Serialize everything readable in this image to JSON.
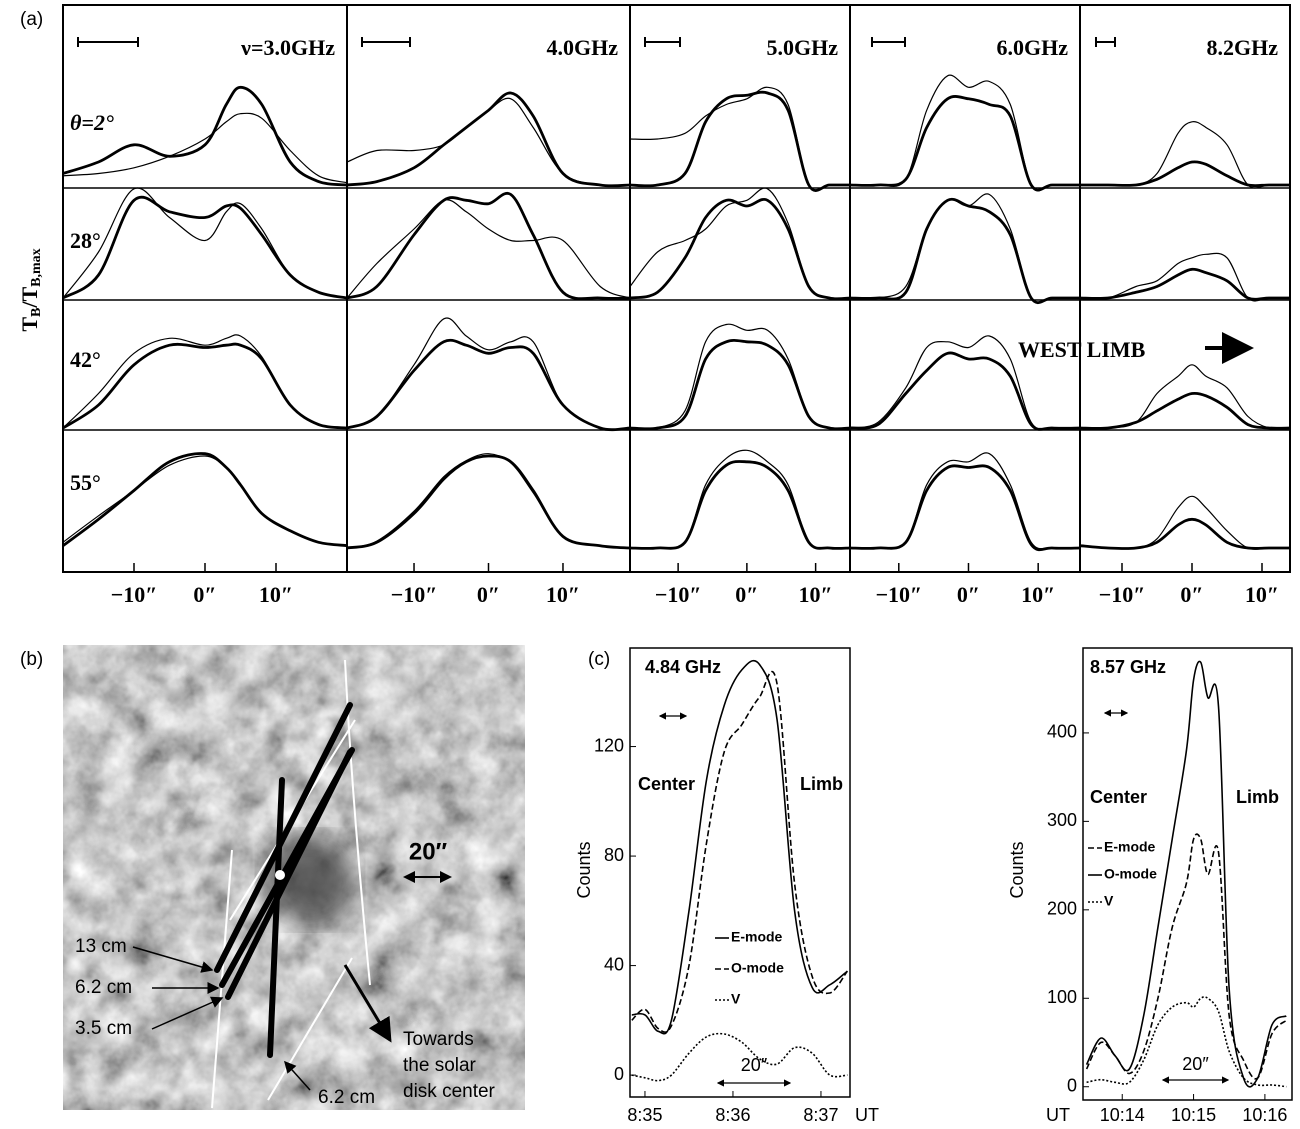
{
  "chart_data": [
    {
      "type": "profile-grid",
      "panel_label": "(a)",
      "y_label": [
        "T",
        "B",
        "/T",
        "B,max"
      ],
      "annotation": "WEST LIMB",
      "rows": [
        "θ=2°",
        "28°",
        "42°",
        "55°"
      ],
      "ylim": [
        0,
        1
      ],
      "xticks": [
        {
          "value": -10,
          "label": "−10″"
        },
        {
          "value": 0,
          "label": "0″"
        },
        {
          "value": 10,
          "label": "10″"
        }
      ],
      "columns": [
        {
          "label": "ν=3.0GHz",
          "xlim": [
            -20,
            20
          ],
          "x": [
            -20,
            -15,
            -10,
            -5,
            0,
            3,
            5,
            8,
            12,
            16,
            20
          ],
          "profiles": [
            {
              "heavy": [
                0.1,
                0.2,
                0.35,
                0.25,
                0.35,
                0.7,
                0.85,
                0.7,
                0.2,
                0.03,
                0
              ],
              "light": [
                0.08,
                0.1,
                0.15,
                0.25,
                0.4,
                0.55,
                0.62,
                0.58,
                0.3,
                0.08,
                0.02
              ]
            },
            {
              "heavy": [
                0,
                0.2,
                0.85,
                0.75,
                0.7,
                0.8,
                0.78,
                0.55,
                0.2,
                0.05,
                0
              ],
              "light": [
                0,
                0.4,
                0.95,
                0.7,
                0.5,
                0.75,
                0.82,
                0.6,
                0.2,
                0.05,
                0
              ]
            },
            {
              "heavy": [
                0,
                0.2,
                0.55,
                0.72,
                0.7,
                0.72,
                0.72,
                0.6,
                0.2,
                0.03,
                0
              ],
              "light": [
                0,
                0.3,
                0.65,
                0.78,
                0.72,
                0.78,
                0.8,
                0.62,
                0.2,
                0.03,
                0
              ]
            },
            {
              "heavy": [
                0.02,
                0.25,
                0.5,
                0.75,
                0.82,
                0.7,
                0.55,
                0.3,
                0.15,
                0.05,
                0.02
              ],
              "light": [
                0.05,
                0.28,
                0.5,
                0.72,
                0.8,
                0.7,
                0.55,
                0.3,
                0.15,
                0.05,
                0.02
              ]
            }
          ]
        },
        {
          "label": "4.0GHz",
          "xlim": [
            -19,
            19
          ],
          "x": [
            -19,
            -15,
            -10,
            -6,
            -3,
            0,
            3,
            6,
            10,
            15,
            19
          ],
          "profiles": [
            {
              "heavy": [
                0,
                0.03,
                0.15,
                0.35,
                0.5,
                0.65,
                0.8,
                0.6,
                0.1,
                0,
                0
              ],
              "light": [
                0.2,
                0.3,
                0.3,
                0.35,
                0.5,
                0.65,
                0.75,
                0.5,
                0.1,
                0,
                0
              ]
            },
            {
              "heavy": [
                0,
                0.1,
                0.55,
                0.85,
                0.85,
                0.82,
                0.9,
                0.55,
                0.05,
                0,
                0
              ],
              "light": [
                0,
                0.3,
                0.6,
                0.85,
                0.75,
                0.6,
                0.5,
                0.5,
                0.5,
                0.1,
                0
              ]
            },
            {
              "heavy": [
                0,
                0.1,
                0.5,
                0.75,
                0.72,
                0.65,
                0.7,
                0.65,
                0.2,
                0,
                0
              ],
              "light": [
                0,
                0.1,
                0.55,
                0.95,
                0.8,
                0.68,
                0.75,
                0.75,
                0.2,
                0,
                0
              ]
            },
            {
              "heavy": [
                0,
                0.05,
                0.3,
                0.6,
                0.75,
                0.8,
                0.75,
                0.5,
                0.1,
                0.02,
                0
              ],
              "light": [
                0,
                0.06,
                0.32,
                0.62,
                0.76,
                0.82,
                0.74,
                0.48,
                0.1,
                0.02,
                0
              ]
            }
          ]
        },
        {
          "label": "5.0GHz",
          "xlim": [
            -17,
            15
          ],
          "x": [
            -17,
            -13,
            -9,
            -6,
            -3,
            0,
            3,
            6,
            9,
            12,
            15
          ],
          "profiles": [
            {
              "heavy": [
                0,
                0,
                0.1,
                0.55,
                0.75,
                0.78,
                0.8,
                0.65,
                0,
                0,
                0
              ],
              "light": [
                0.4,
                0.4,
                0.45,
                0.6,
                0.7,
                0.75,
                0.85,
                0.7,
                0,
                0,
                0
              ]
            },
            {
              "heavy": [
                0,
                0.05,
                0.35,
                0.7,
                0.85,
                0.8,
                0.85,
                0.6,
                0.1,
                0,
                0
              ],
              "light": [
                0.1,
                0.4,
                0.5,
                0.6,
                0.8,
                0.85,
                0.95,
                0.65,
                0.1,
                0,
                0
              ]
            },
            {
              "heavy": [
                0,
                0,
                0.1,
                0.6,
                0.75,
                0.75,
                0.72,
                0.55,
                0.1,
                0,
                0
              ],
              "light": [
                0,
                0,
                0.15,
                0.75,
                0.9,
                0.85,
                0.85,
                0.6,
                0.1,
                0,
                0
              ]
            },
            {
              "heavy": [
                0,
                0,
                0.05,
                0.5,
                0.72,
                0.75,
                0.7,
                0.5,
                0.05,
                0,
                0
              ],
              "light": [
                0,
                0,
                0.05,
                0.55,
                0.78,
                0.85,
                0.75,
                0.55,
                0.05,
                0,
                0
              ]
            }
          ]
        },
        {
          "label": "6.0GHz",
          "xlim": [
            -17,
            16
          ],
          "x": [
            -17,
            -13,
            -9,
            -6,
            -3,
            0,
            3,
            6,
            9,
            12,
            16
          ],
          "profiles": [
            {
              "heavy": [
                0,
                0,
                0.05,
                0.5,
                0.75,
                0.75,
                0.7,
                0.6,
                0,
                0,
                0
              ],
              "light": [
                0,
                0,
                0.05,
                0.65,
                0.95,
                0.85,
                0.9,
                0.7,
                0,
                0,
                0
              ]
            },
            {
              "heavy": [
                0,
                0,
                0.05,
                0.6,
                0.85,
                0.8,
                0.75,
                0.55,
                0,
                0,
                0
              ],
              "light": [
                0,
                0,
                0.1,
                0.6,
                0.85,
                0.8,
                0.9,
                0.6,
                0,
                0,
                0
              ]
            },
            {
              "heavy": [
                0,
                0.03,
                0.3,
                0.5,
                0.65,
                0.6,
                0.6,
                0.45,
                0.03,
                0,
                0
              ],
              "light": [
                0,
                0.05,
                0.35,
                0.7,
                0.75,
                0.7,
                0.8,
                0.6,
                0.05,
                0,
                0
              ]
            },
            {
              "heavy": [
                0,
                0,
                0.05,
                0.5,
                0.7,
                0.7,
                0.7,
                0.5,
                0.03,
                0,
                0
              ],
              "light": [
                0,
                0,
                0.05,
                0.55,
                0.75,
                0.75,
                0.82,
                0.55,
                0.05,
                0,
                0
              ]
            }
          ]
        },
        {
          "label": "8.2GHz",
          "xlim": [
            -16,
            14
          ],
          "x": [
            -16,
            -12,
            -8,
            -5,
            -2,
            0,
            2,
            5,
            8,
            11,
            14
          ],
          "profiles": [
            {
              "heavy": [
                0,
                0,
                0,
                0.05,
                0.15,
                0.2,
                0.18,
                0.08,
                0,
                0,
                0
              ],
              "light": [
                0,
                0,
                0,
                0.1,
                0.45,
                0.55,
                0.5,
                0.35,
                0,
                0,
                0
              ]
            },
            {
              "heavy": [
                0,
                0,
                0.05,
                0.1,
                0.2,
                0.25,
                0.22,
                0.15,
                0,
                0,
                0
              ],
              "light": [
                0,
                0,
                0.1,
                0.15,
                0.3,
                0.35,
                0.38,
                0.35,
                0,
                0,
                0
              ]
            },
            {
              "heavy": [
                0,
                0,
                0.05,
                0.15,
                0.25,
                0.3,
                0.28,
                0.18,
                0.03,
                0,
                0
              ],
              "light": [
                0,
                0,
                0.05,
                0.3,
                0.45,
                0.55,
                0.45,
                0.35,
                0.1,
                0,
                0
              ]
            },
            {
              "heavy": [
                0.02,
                0,
                0,
                0.05,
                0.2,
                0.25,
                0.2,
                0.05,
                0,
                0,
                0
              ],
              "light": [
                0.02,
                0,
                0,
                0.08,
                0.35,
                0.45,
                0.35,
                0.15,
                0,
                0,
                0
              ]
            }
          ]
        }
      ]
    },
    {
      "type": "line",
      "panel_label": "(c)",
      "title": "4.84 GHz",
      "y_label": "Counts",
      "x_label": "UT",
      "annotations": [
        "Center",
        "Limb"
      ],
      "scale_label": "20″",
      "xlim": [
        514.83,
        517.33
      ],
      "ylim": [
        -8,
        156
      ],
      "xticks": [
        {
          "value": 515,
          "label": "8:35"
        },
        {
          "value": 516,
          "label": "8:36"
        },
        {
          "value": 517,
          "label": "8:37"
        }
      ],
      "yticks": [
        0,
        40,
        80,
        120
      ],
      "x": [
        514.85,
        515.0,
        515.15,
        515.3,
        515.5,
        515.7,
        515.9,
        516.1,
        516.3,
        516.5,
        516.7,
        516.9,
        517.1,
        517.3
      ],
      "series": [
        {
          "name": "E-mode",
          "color": "#000000",
          "dash": "solid",
          "values": [
            22,
            22,
            16,
            20,
            60,
            108,
            135,
            148,
            150,
            130,
            60,
            32,
            33,
            38
          ]
        },
        {
          "name": "O-mode",
          "color": "#000000",
          "dash": "dashed",
          "values": [
            20,
            24,
            17,
            18,
            40,
            85,
            118,
            128,
            138,
            143,
            70,
            36,
            30,
            38
          ]
        },
        {
          "name": "V",
          "color": "#000000",
          "dash": "dotted",
          "values": [
            0,
            -1,
            -2,
            0,
            8,
            14,
            15,
            12,
            6,
            4,
            10,
            8,
            0,
            0
          ]
        }
      ]
    },
    {
      "type": "line",
      "title": "8.57 GHz",
      "y_label": "Counts",
      "x_label": "UT",
      "annotations": [
        "Center",
        "Limb"
      ],
      "scale_label": "20″",
      "xlim": [
        613.45,
        616.38
      ],
      "ylim": [
        -15,
        496
      ],
      "xticks": [
        {
          "value": 614,
          "label": "10:14"
        },
        {
          "value": 615,
          "label": "10:15"
        },
        {
          "value": 616,
          "label": "10:16"
        }
      ],
      "yticks": [
        0,
        100,
        200,
        300,
        400
      ],
      "x": [
        613.5,
        613.7,
        613.9,
        614.1,
        614.3,
        614.5,
        614.7,
        614.9,
        615.0,
        615.1,
        615.2,
        615.35,
        615.5,
        615.7,
        615.9,
        616.1,
        616.3
      ],
      "series": [
        {
          "name": "E-mode",
          "color": "#000000",
          "dash": "dashed",
          "values": [
            20,
            50,
            35,
            15,
            40,
            100,
            180,
            230,
            280,
            280,
            240,
            265,
            80,
            30,
            10,
            60,
            75
          ]
        },
        {
          "name": "O-mode",
          "color": "#000000",
          "dash": "solid",
          "values": [
            25,
            55,
            35,
            20,
            80,
            180,
            280,
            380,
            460,
            480,
            440,
            430,
            110,
            10,
            10,
            70,
            80
          ]
        },
        {
          "name": "V",
          "color": "#000000",
          "dash": "dotted",
          "values": [
            5,
            8,
            5,
            5,
            30,
            70,
            90,
            95,
            90,
            100,
            100,
            85,
            40,
            10,
            2,
            2,
            0
          ]
        }
      ]
    }
  ],
  "image_panel": {
    "panel_label": "(b)",
    "scale_label": "20″",
    "line_labels": [
      "13 cm",
      "6.2 cm",
      "3.5 cm",
      "6.2 cm"
    ],
    "direction_label": [
      "Towards",
      "the solar",
      "disk center"
    ]
  }
}
